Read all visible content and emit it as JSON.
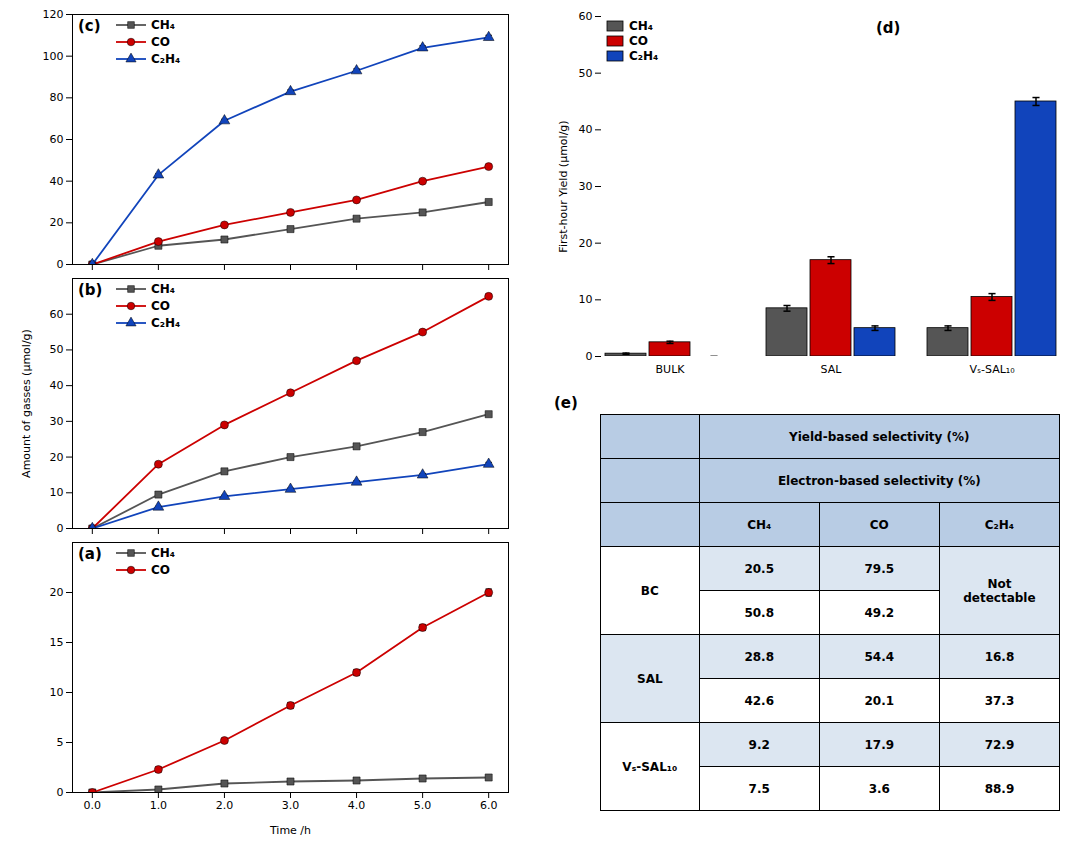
{
  "chart_data": [
    {
      "type": "line",
      "title": "(c)",
      "x": [
        0,
        1,
        2,
        3,
        4,
        5,
        6
      ],
      "xlim": [
        -0.3,
        6.3
      ],
      "xticks": [
        0,
        1,
        2,
        3,
        4,
        5,
        6
      ],
      "ylim": [
        0,
        120
      ],
      "yticks": [
        0,
        20,
        40,
        60,
        80,
        100,
        120
      ],
      "tick_labels": "y",
      "legend": "upper left",
      "series": [
        {
          "name": "CH₄",
          "color": "#555555",
          "marker": "square",
          "values": [
            0,
            9,
            12,
            17,
            22,
            25,
            30
          ],
          "errors": [
            0,
            0.3,
            0.4,
            0.4,
            0.4,
            0.5,
            0.5
          ]
        },
        {
          "name": "CO",
          "color": "#cc0000",
          "marker": "circle",
          "values": [
            0,
            11,
            19,
            25,
            31,
            40,
            47
          ],
          "errors": [
            0,
            0.3,
            0.4,
            0.4,
            0.5,
            0.5,
            0.6
          ]
        },
        {
          "name": "C₂H₄",
          "color": "#1144bb",
          "marker": "triangle",
          "values": [
            0,
            43,
            69,
            83,
            93,
            104,
            109
          ],
          "errors": [
            0,
            0.5,
            0.7,
            0.8,
            0.9,
            1.0,
            1.0
          ]
        }
      ]
    },
    {
      "type": "line",
      "title": "(b)",
      "ylabel": "Amount of gasses (μmol/g)",
      "x": [
        0,
        1,
        2,
        3,
        4,
        5,
        6
      ],
      "xlim": [
        -0.3,
        6.3
      ],
      "xticks": [
        0,
        1,
        2,
        3,
        4,
        5,
        6
      ],
      "ylim": [
        0,
        70
      ],
      "yticks": [
        0,
        10,
        20,
        30,
        40,
        50,
        60
      ],
      "tick_labels": "y",
      "legend": "upper left",
      "series": [
        {
          "name": "CH₄",
          "color": "#555555",
          "marker": "square",
          "values": [
            0,
            9.5,
            16,
            20,
            23,
            27,
            32
          ],
          "errors": [
            0,
            0.3,
            0.4,
            0.4,
            0.4,
            0.5,
            0.5
          ]
        },
        {
          "name": "CO",
          "color": "#cc0000",
          "marker": "circle",
          "values": [
            0,
            18,
            29,
            38,
            47,
            55,
            65
          ],
          "errors": [
            0,
            0.3,
            0.4,
            0.4,
            0.5,
            0.5,
            0.6
          ]
        },
        {
          "name": "C₂H₄",
          "color": "#1144bb",
          "marker": "triangle",
          "values": [
            0,
            6,
            9,
            11,
            13,
            15,
            18
          ],
          "errors": [
            0,
            0.2,
            0.3,
            0.3,
            0.4,
            0.4,
            0.5
          ]
        }
      ]
    },
    {
      "type": "line",
      "title": "(a)",
      "xlabel": "Time /h",
      "x": [
        0,
        1,
        2,
        3,
        4,
        5,
        6
      ],
      "xlim": [
        -0.3,
        6.3
      ],
      "xticks": [
        0,
        1,
        2,
        3,
        4,
        5,
        6
      ],
      "ylim": [
        0,
        25
      ],
      "yticks": [
        0,
        5,
        10,
        15,
        20
      ],
      "legend": "upper left",
      "series": [
        {
          "name": "CH₄",
          "color": "#555555",
          "marker": "square",
          "values": [
            0,
            0.3,
            0.9,
            1.1,
            1.2,
            1.4,
            1.5
          ],
          "errors": [
            0,
            0.15,
            0.1,
            0.12,
            0.1,
            0.12,
            0.2
          ]
        },
        {
          "name": "CO",
          "color": "#cc0000",
          "marker": "circle",
          "values": [
            0,
            2.3,
            5.2,
            8.7,
            12.0,
            16.5,
            20.0
          ],
          "errors": [
            0,
            0.25,
            0.2,
            0.3,
            0.3,
            0.3,
            0.35
          ]
        }
      ]
    },
    {
      "type": "bar",
      "title": "(d)",
      "ylabel": "First-hour Yield (μmol/g)",
      "categories": [
        "BULK",
        "SAL",
        "Vₛ-SAL₁₀"
      ],
      "ylim": [
        0,
        60
      ],
      "yticks": [
        0,
        10,
        20,
        30,
        40,
        50,
        60
      ],
      "legend": "upper left",
      "series": [
        {
          "name": "CH₄",
          "color": "#555555",
          "values": [
            0.5,
            8.5,
            5.0
          ],
          "errors": [
            0.1,
            0.5,
            0.4
          ]
        },
        {
          "name": "CO",
          "color": "#cc0000",
          "values": [
            2.5,
            17.0,
            10.5
          ],
          "errors": [
            0.2,
            0.6,
            0.6
          ]
        },
        {
          "name": "C₂H₄",
          "color": "#1144bb",
          "values": [
            0.0,
            5.0,
            45.0
          ],
          "errors": [
            0.0,
            0.4,
            0.7
          ]
        }
      ]
    },
    {
      "type": "table",
      "title": "(e)",
      "colors": [
        "#b8cce4",
        "#dce6f1",
        "#ffffff"
      ],
      "columns": [
        "CH₄",
        "CO",
        "C₂H₄"
      ],
      "categories": [
        "BC",
        "SAL",
        "Vₛ-SAL₁₀"
      ],
      "series": [
        {
          "name": "Yield-based selectivity (%)",
          "values": [
            [
              20.5,
              79.5,
              "Not\ndetectable"
            ],
            [
              28.8,
              54.4,
              16.8
            ],
            [
              9.2,
              17.9,
              72.9
            ]
          ]
        },
        {
          "name": "Electron-based selectivity (%)",
          "values": [
            [
              50.8,
              49.2,
              null
            ],
            [
              42.6,
              20.1,
              37.3
            ],
            [
              7.5,
              3.6,
              88.9
            ]
          ]
        }
      ]
    }
  ]
}
